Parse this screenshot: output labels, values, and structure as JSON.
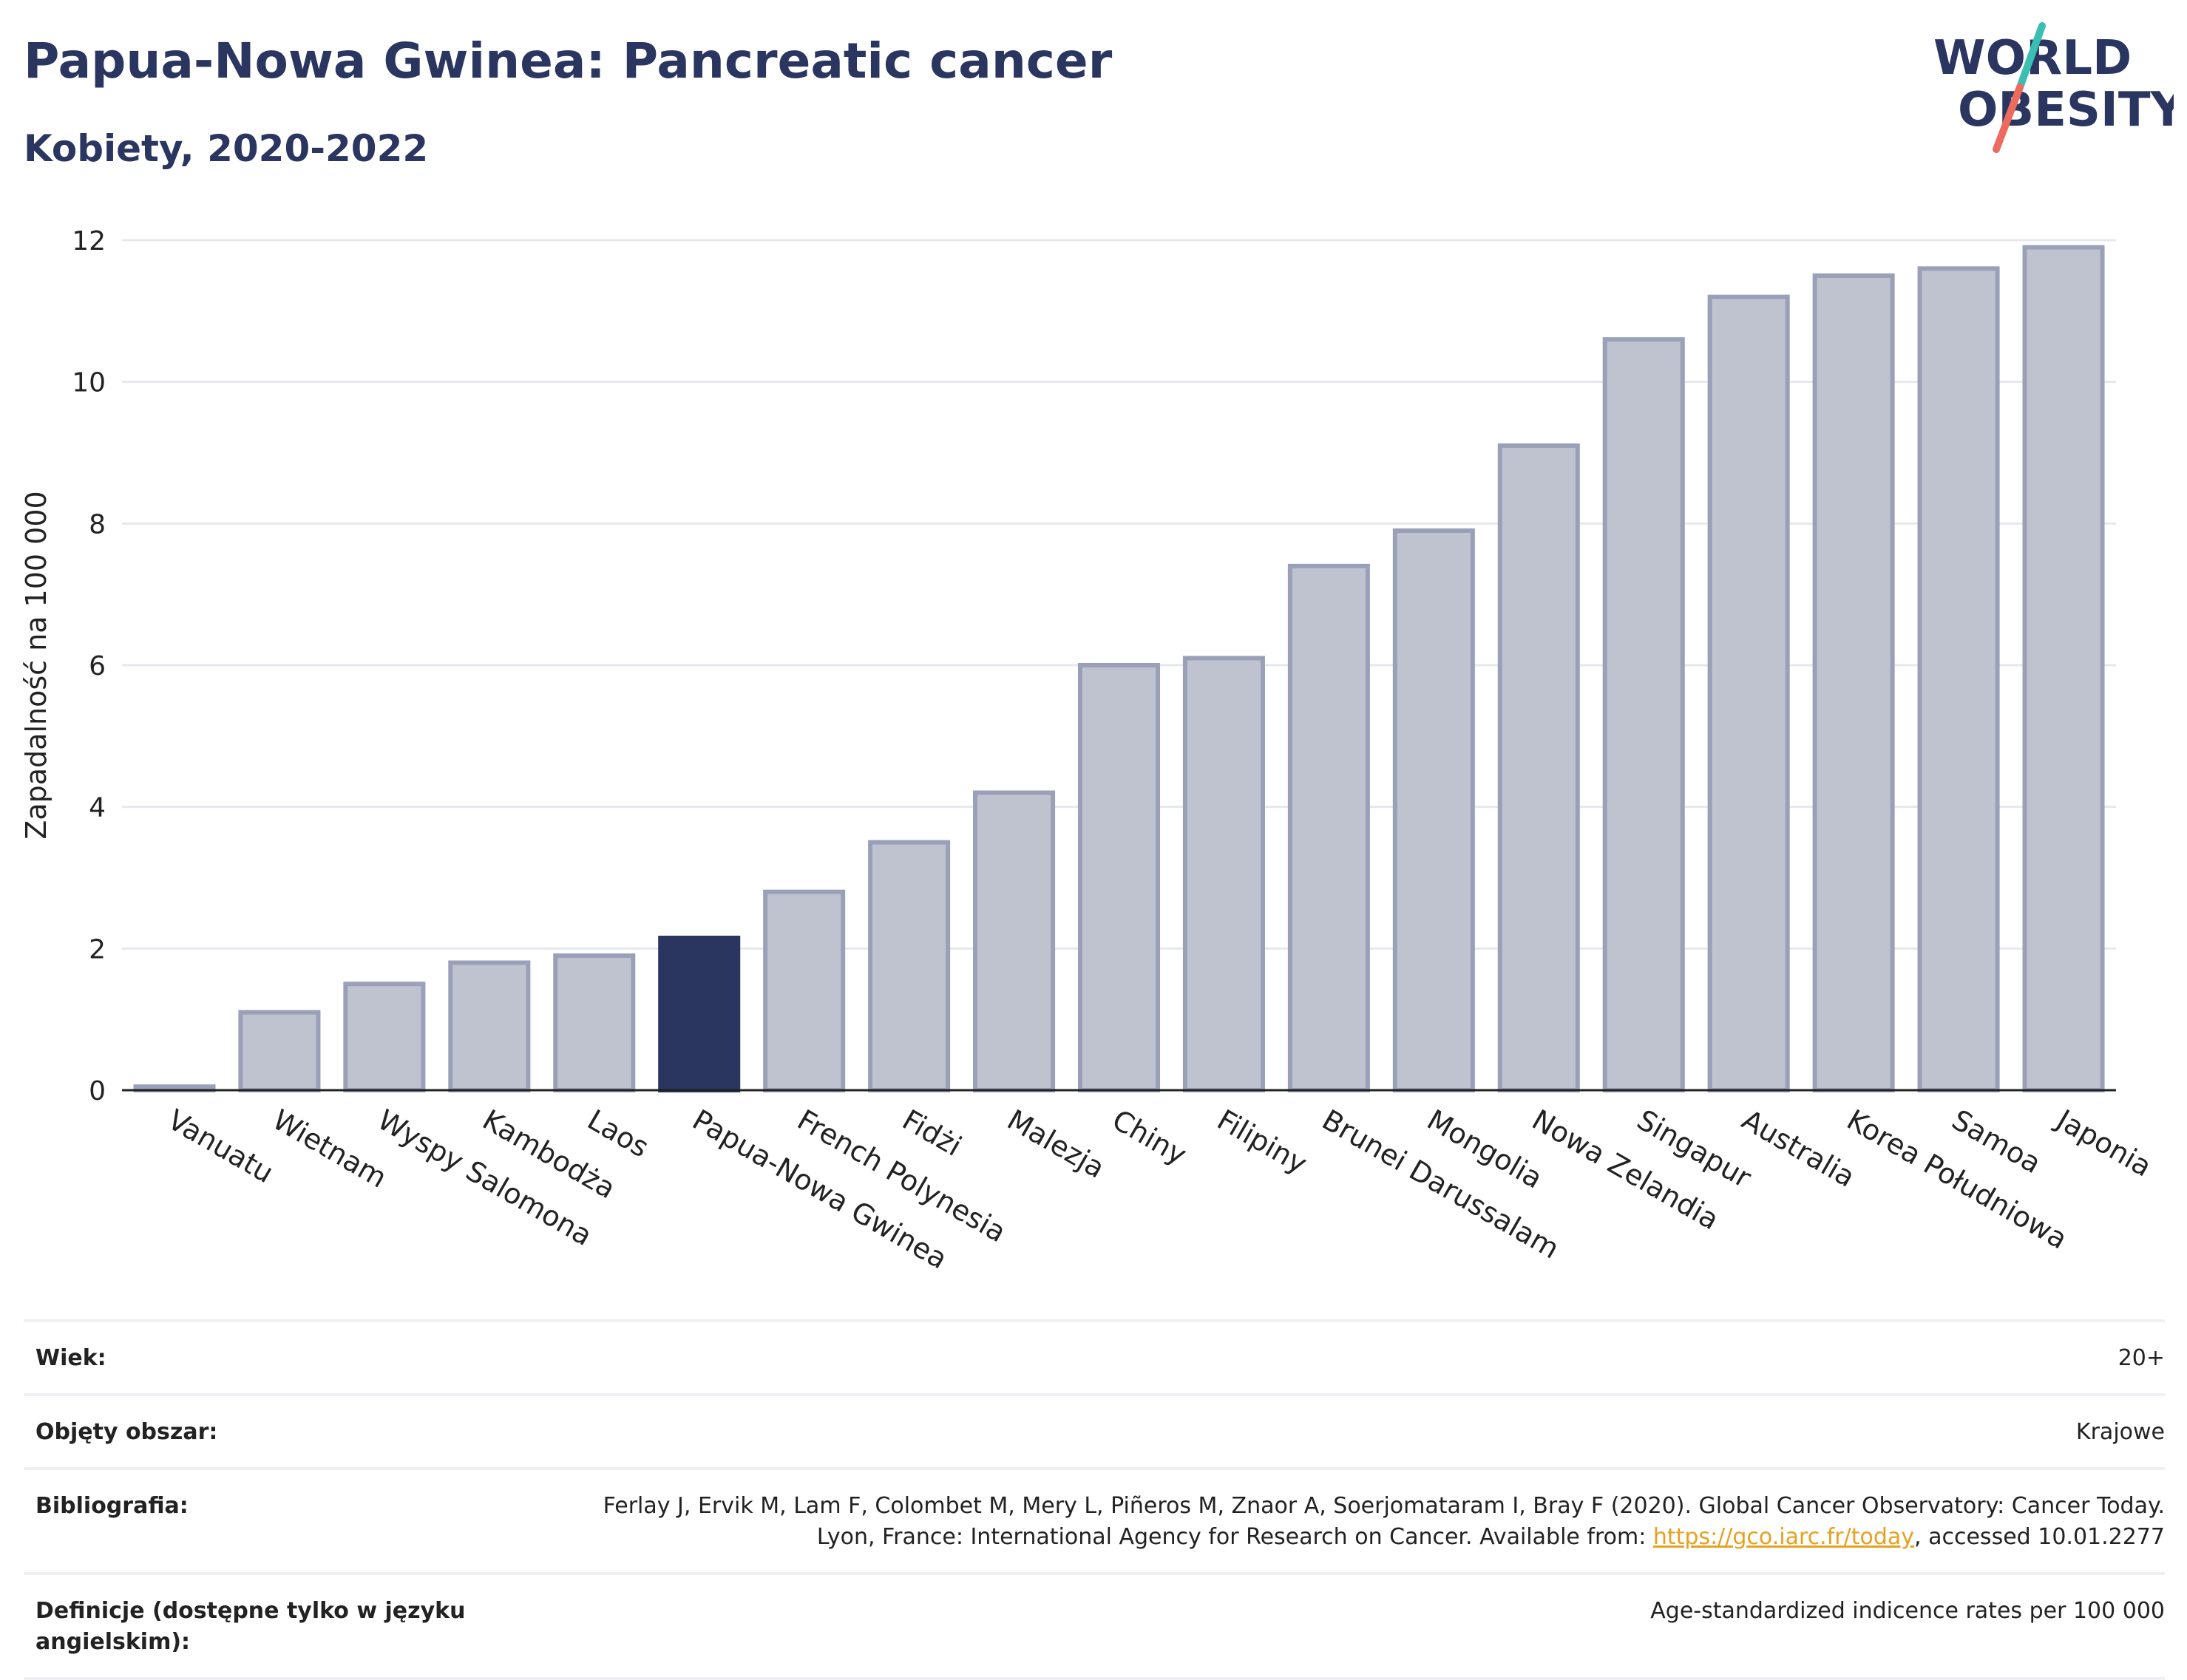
{
  "header": {
    "title": "Papua-Nowa Gwinea: Pancreatic cancer",
    "subtitle": "Kobiety, 2020-2022"
  },
  "logo": {
    "line1": "WORLD",
    "line2": "OBESITY"
  },
  "colors": {
    "bar": "#bfc3d0",
    "bar_edge": "#9aa0b8",
    "highlight": "#2a3560",
    "title": "#2a3560",
    "link": "#e8a020"
  },
  "chart_data": {
    "type": "bar",
    "ylabel": "Zapadalność na 100 000",
    "ylim": [
      0,
      12
    ],
    "yticks": [
      0,
      2,
      4,
      6,
      8,
      10,
      12
    ],
    "grid": true,
    "highlight": "Papua-Nowa Gwinea",
    "categories": [
      "Vanuatu",
      "Wietnam",
      "Wyspy Salomona",
      "Kambodża",
      "Laos",
      "Papua-Nowa Gwinea",
      "French Polynesia",
      "Fidżi",
      "Malezja",
      "Chiny",
      "Filipiny",
      "Brunei Darussalam",
      "Mongolia",
      "Nowa Zelandia",
      "Singapur",
      "Australia",
      "Korea Południowa",
      "Samoa",
      "Japonia"
    ],
    "values": [
      0.05,
      1.1,
      1.5,
      1.8,
      1.9,
      2.15,
      2.8,
      3.5,
      4.2,
      6.0,
      6.1,
      7.4,
      7.9,
      9.1,
      10.6,
      11.2,
      11.5,
      11.6,
      11.9
    ]
  },
  "meta": {
    "age_label": "Wiek:",
    "age_value": "20+",
    "coverage_label": "Objęty obszar:",
    "coverage_value": "Krajowe",
    "bibliography_label": "Bibliografia:",
    "bibliography_text1": "Ferlay J, Ervik M, Lam F, Colombet M, Mery L, Piñeros M, Znaor A, Soerjomataram I, Bray F (2020). Global Cancer Observatory: Cancer Today. Lyon, France: International Agency for Research on Cancer. Available from: ",
    "bibliography_link": "https://gco.iarc.fr/today",
    "bibliography_text2": ", accessed 10.01.2277",
    "definitions_label": "Definicje (dostępne tylko w języku angielskim):",
    "definitions_value": "Age-standardized indicence rates per 100 000"
  }
}
